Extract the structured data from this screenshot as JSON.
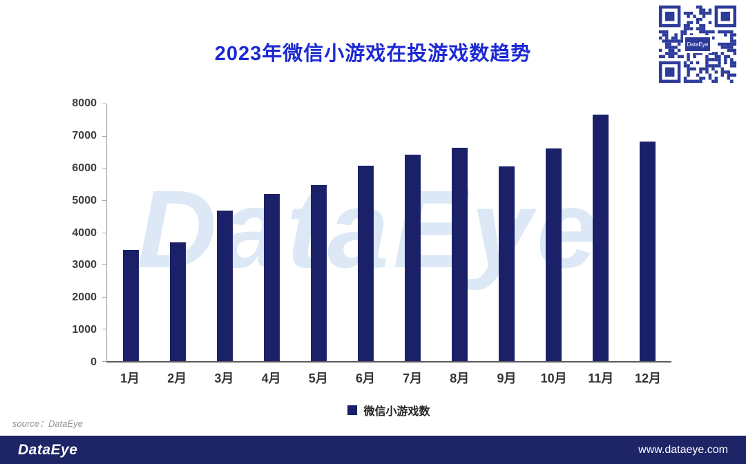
{
  "title": "2023年微信小游戏在投游戏数趋势",
  "chart_data": {
    "type": "bar",
    "categories": [
      "1月",
      "2月",
      "3月",
      "4月",
      "5月",
      "6月",
      "7月",
      "8月",
      "9月",
      "10月",
      "11月",
      "12月"
    ],
    "values": [
      3450,
      3700,
      4680,
      5180,
      5460,
      6060,
      6420,
      6630,
      6040,
      6600,
      7660,
      6810
    ],
    "series": [
      {
        "name": "微信小游戏数",
        "values": [
          3450,
          3700,
          4680,
          5180,
          5460,
          6060,
          6420,
          6630,
          6040,
          6600,
          7660,
          6810
        ]
      }
    ],
    "title": "2023年微信小游戏在投游戏数趋势",
    "xlabel": "",
    "ylabel": "",
    "ylim": [
      0,
      8000
    ],
    "ytick_step": 1000,
    "bar_color": "#1b2168",
    "grid": false,
    "legend_position": "bottom"
  },
  "legend": {
    "label": "微信小游戏数"
  },
  "watermark": "DataEye",
  "source": "source：DataEye",
  "footer": {
    "brand": "DataEye",
    "website": "www.dataeye.com"
  },
  "qr": {
    "center_text": "DataEye",
    "color": "#2c3b99"
  },
  "colors": {
    "title": "#1c2ad4",
    "bar": "#1b2168",
    "footer_bg": "#1d2567"
  }
}
